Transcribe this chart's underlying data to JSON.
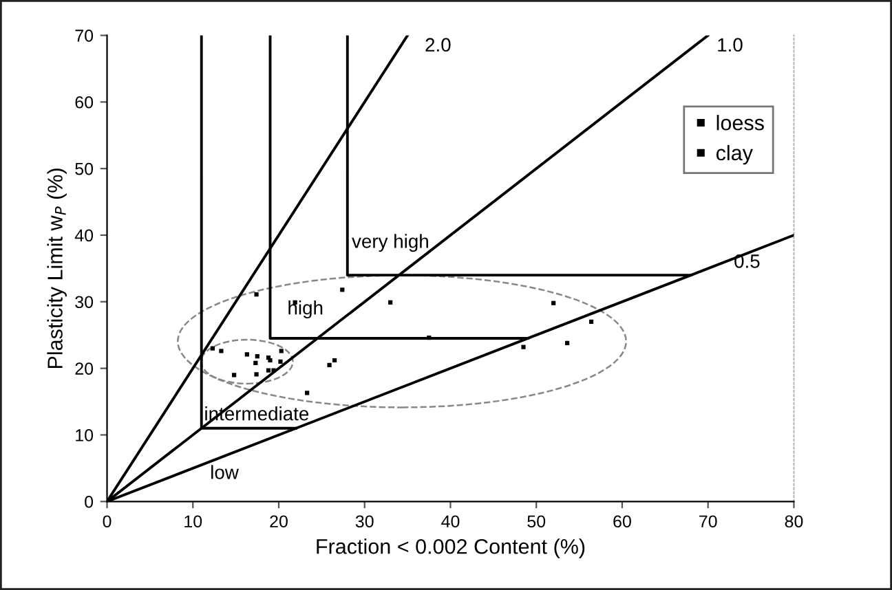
{
  "chart_data": {
    "type": "scatter",
    "xlabel": "Fraction < 0.002 Content (%)",
    "ylabel": "Plasticity Limit w$_{P}$ (%)",
    "xlim": [
      0,
      80
    ],
    "ylim": [
      0,
      70
    ],
    "xticks": [
      0,
      10,
      20,
      30,
      40,
      50,
      60,
      70,
      80
    ],
    "yticks": [
      0,
      10,
      20,
      30,
      40,
      50,
      60,
      70
    ],
    "grid": false,
    "legend": "top right",
    "marker": "square",
    "series": [
      {
        "name": "loess",
        "color": "#000000",
        "x": [
          12.3,
          13.3,
          14.8,
          16.3,
          17.3,
          17.4,
          17.5,
          18.8,
          19.0,
          18.8,
          19.4,
          20.3,
          20.2
        ],
        "values": [
          23.0,
          22.6,
          19.0,
          22.1,
          20.8,
          19.1,
          21.8,
          21.6,
          21.2,
          19.7,
          19.7,
          22.6,
          21.0
        ]
      },
      {
        "name": "clay",
        "color": "#000000",
        "x": [
          17.4,
          21.9,
          27.4,
          33.0,
          37.5,
          25.9,
          26.5,
          23.3,
          52.0,
          56.4,
          48.5,
          53.6
        ],
        "values": [
          31.1,
          29.9,
          31.8,
          29.9,
          24.6,
          20.5,
          21.2,
          16.3,
          29.8,
          27.0,
          23.2,
          23.8
        ]
      },
      {
        "type": "line",
        "marker": "none",
        "color": "#000000",
        "line_style": "solid",
        "x": [
          0,
          35
        ],
        "values": [
          0,
          70
        ]
      },
      {
        "type": "line",
        "marker": "none",
        "color": "#000000",
        "line_style": "solid",
        "x": [
          0,
          70
        ],
        "values": [
          0,
          70
        ]
      },
      {
        "type": "line",
        "marker": "none",
        "color": "#000000",
        "line_style": "solid",
        "x": [
          0,
          80
        ],
        "values": [
          0,
          40
        ]
      },
      {
        "type": "line",
        "marker": "none",
        "color": "#000000",
        "line_style": "solid",
        "x": [
          11,
          11,
          22
        ],
        "values": [
          70,
          11,
          11
        ]
      },
      {
        "type": "line",
        "marker": "none",
        "color": "#000000",
        "line_style": "solid",
        "x": [
          19,
          19,
          49
        ],
        "values": [
          70,
          24.5,
          24.5
        ]
      },
      {
        "type": "line",
        "marker": "none",
        "color": "#000000",
        "line_style": "solid",
        "x": [
          28,
          28,
          68
        ],
        "values": [
          70,
          34,
          34
        ]
      }
    ],
    "annotations": [
      "2.0",
      "1.0",
      "0.5",
      "very high",
      "high",
      "intermediate",
      "low"
    ]
  }
}
